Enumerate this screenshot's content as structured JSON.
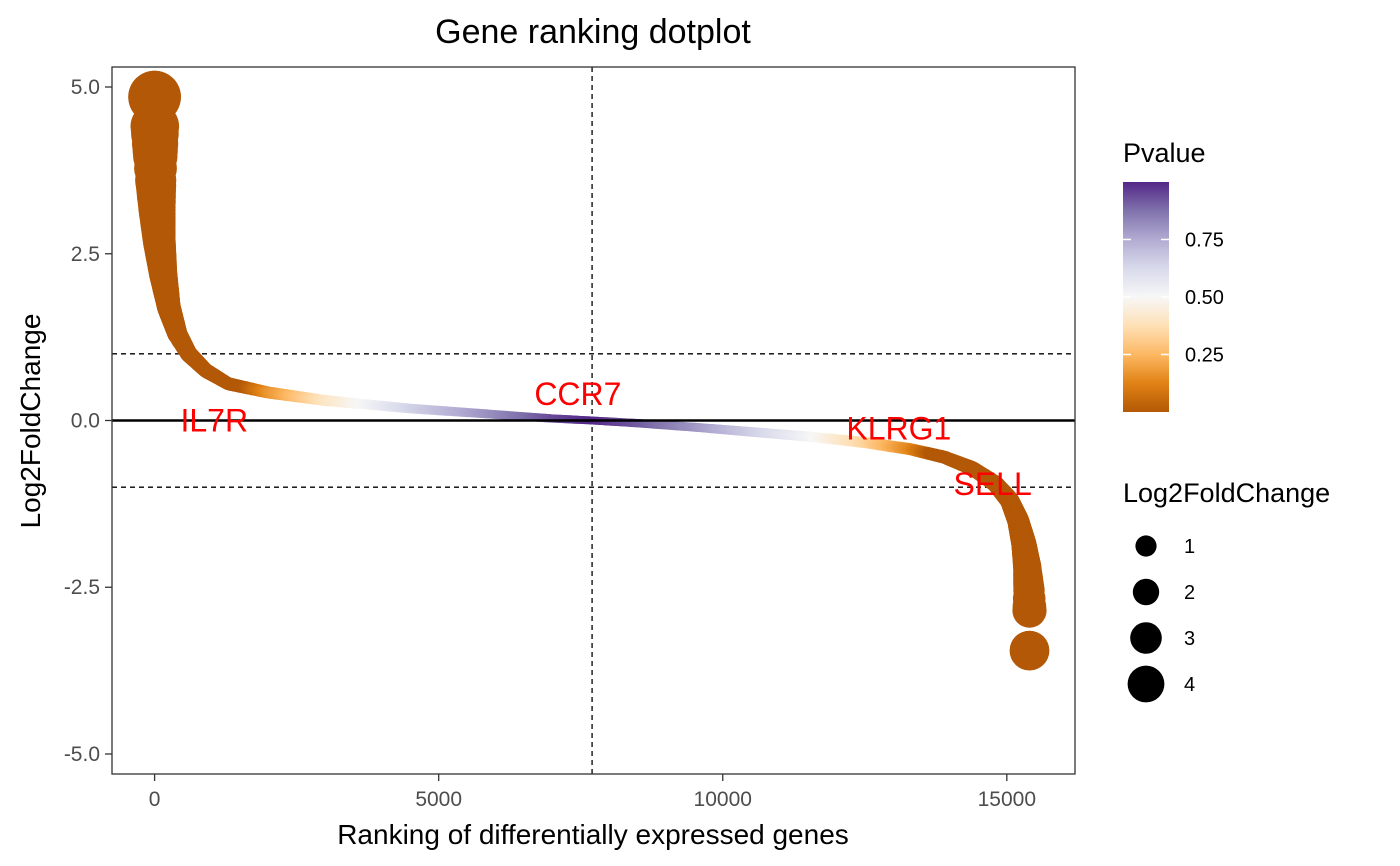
{
  "chart_data": {
    "type": "scatter",
    "title": "Gene ranking dotplot",
    "xlabel": "Ranking of differentially expressed genes",
    "ylabel": "Log2FoldChange",
    "xlim": [
      -750,
      16200
    ],
    "ylim": [
      -5.3,
      5.3
    ],
    "x_ticks": [
      0,
      5000,
      10000,
      15000
    ],
    "x_tick_labels": [
      "0",
      "5000",
      "10000",
      "15000"
    ],
    "y_ticks": [
      5.0,
      2.5,
      0.0,
      -2.5,
      -5.0
    ],
    "y_tick_labels": [
      "5.0",
      "2.5",
      "0.0",
      "-2.5",
      "-5.0"
    ],
    "grid": false,
    "n_genes": 15400,
    "reference_lines": {
      "horizontal_solid": 0,
      "horizontal_dashed": [
        1,
        -1
      ],
      "vertical_dashed": 7700
    },
    "curve_points": [
      {
        "x": 0,
        "y": 4.85
      },
      {
        "x": 5,
        "y": 4.3
      },
      {
        "x": 10,
        "y": 4.05
      },
      {
        "x": 20,
        "y": 3.6
      },
      {
        "x": 40,
        "y": 3.2
      },
      {
        "x": 80,
        "y": 2.7
      },
      {
        "x": 150,
        "y": 2.2
      },
      {
        "x": 250,
        "y": 1.7
      },
      {
        "x": 400,
        "y": 1.3
      },
      {
        "x": 600,
        "y": 1.0
      },
      {
        "x": 900,
        "y": 0.75
      },
      {
        "x": 1300,
        "y": 0.55
      },
      {
        "x": 2000,
        "y": 0.42
      },
      {
        "x": 3000,
        "y": 0.3
      },
      {
        "x": 4500,
        "y": 0.18
      },
      {
        "x": 6000,
        "y": 0.09
      },
      {
        "x": 7000,
        "y": 0.03
      },
      {
        "x": 7700,
        "y": 0.0
      },
      {
        "x": 8500,
        "y": -0.04
      },
      {
        "x": 9500,
        "y": -0.1
      },
      {
        "x": 10500,
        "y": -0.17
      },
      {
        "x": 11500,
        "y": -0.24
      },
      {
        "x": 12500,
        "y": -0.33
      },
      {
        "x": 13300,
        "y": -0.43
      },
      {
        "x": 13900,
        "y": -0.55
      },
      {
        "x": 14400,
        "y": -0.72
      },
      {
        "x": 14800,
        "y": -0.95
      },
      {
        "x": 15050,
        "y": -1.2
      },
      {
        "x": 15200,
        "y": -1.5
      },
      {
        "x": 15300,
        "y": -1.85
      },
      {
        "x": 15360,
        "y": -2.2
      },
      {
        "x": 15390,
        "y": -2.55
      },
      {
        "x": 15400,
        "y": -2.85
      }
    ],
    "extreme_points": [
      {
        "x": 0,
        "y": 4.85
      },
      {
        "x": 5,
        "y": 4.3
      },
      {
        "x": 10,
        "y": 4.05
      },
      {
        "x": 15400,
        "y": -2.85
      },
      {
        "x": 15400,
        "y": -3.45
      }
    ],
    "labeled_genes": [
      {
        "name": "IL7R",
        "x": 1050,
        "y": 0.0
      },
      {
        "name": "CCR7",
        "x": 7450,
        "y": 0.4
      },
      {
        "name": "KLRG1",
        "x": 13100,
        "y": -0.12
      },
      {
        "name": "SELL",
        "x": 14750,
        "y": -0.95
      }
    ],
    "color_legend": {
      "title": "Pvalue",
      "ticks": [
        0.75,
        0.5,
        0.25
      ],
      "tick_labels": [
        "0.75",
        "0.50",
        "0.25"
      ],
      "range": [
        0.0,
        1.0
      ],
      "colors": [
        "#b35806",
        "#e08214",
        "#fdb863",
        "#fee0b6",
        "#f7f7f7",
        "#d8daeb",
        "#b2abd2",
        "#8073ac",
        "#542788"
      ]
    },
    "size_legend": {
      "title": "Log2FoldChange",
      "values": [
        1,
        2,
        3,
        4
      ],
      "labels": [
        "1",
        "2",
        "3",
        "4"
      ]
    }
  }
}
